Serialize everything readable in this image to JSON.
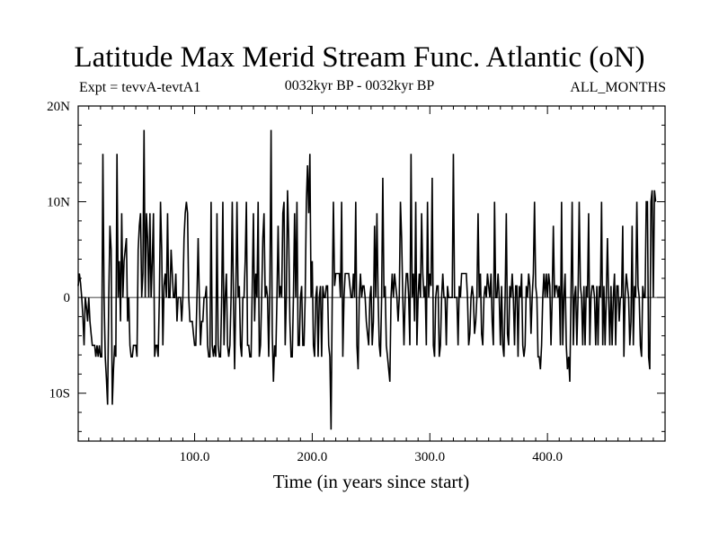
{
  "header": {
    "title": "Latitude Max Merid Stream Func. Atlantic (oN)",
    "experiment": "Expt = tevvA-tevtA1",
    "period": "0032kyr BP - 0032kyr BP",
    "season": "ALL_MONTHS"
  },
  "chart_data": {
    "type": "line",
    "title": "Latitude Max Merid Stream Func. Atlantic (oN)",
    "xlabel": "Time (in years since start)",
    "ylabel": "",
    "xlim": [
      1,
      500
    ],
    "ylim": [
      -15,
      20
    ],
    "x_ticks": [
      100,
      200,
      300,
      400
    ],
    "x_tick_labels": [
      "100.0",
      "200.0",
      "300.0",
      "400.0"
    ],
    "y_ticks": [
      20,
      10,
      0,
      -10
    ],
    "y_tick_labels": [
      "20N",
      "10N",
      "0",
      "10S"
    ],
    "zero_line": 0,
    "line_color": "#000000",
    "series": [
      {
        "x_start": 1,
        "x_step": 1,
        "values": [
          1.2,
          2.5,
          1.5,
          0.0,
          -2.0,
          -5.0,
          0.0,
          -1.0,
          -2.5,
          0.0,
          -2.5,
          -3.8,
          -5.0,
          -5.0,
          -5.0,
          -6.2,
          -5.0,
          -6.2,
          -5.0,
          -6.2,
          -6.2,
          15.0,
          0.0,
          -6.2,
          -8.5,
          -11.2,
          0.0,
          7.5,
          5.0,
          -11.2,
          -7.5,
          -5.0,
          -6.2,
          15.0,
          0.0,
          3.8,
          -2.5,
          8.8,
          0.0,
          3.8,
          5.0,
          6.2,
          -2.5,
          0.0,
          -5.0,
          -6.2,
          -6.2,
          -5.0,
          -5.0,
          -5.0,
          -6.2,
          5.0,
          7.5,
          8.8,
          0.0,
          2.5,
          17.5,
          0.0,
          8.8,
          6.2,
          0.0,
          8.8,
          0.0,
          3.8,
          8.8,
          -6.2,
          -5.0,
          -5.0,
          -6.2,
          0.0,
          10.0,
          5.0,
          -5.0,
          1.2,
          2.5,
          0.0,
          8.8,
          0.0,
          0.0,
          5.0,
          2.5,
          0.0,
          0.0,
          2.5,
          -2.5,
          0.0,
          0.0,
          0.0,
          -2.5,
          0.0,
          6.2,
          8.8,
          10.0,
          8.8,
          0.0,
          -2.5,
          -2.5,
          -2.5,
          -3.8,
          -5.0,
          -5.0,
          0.0,
          6.2,
          0.0,
          -5.0,
          -2.5,
          -2.5,
          0.0,
          0.0,
          1.2,
          -5.0,
          -6.2,
          -6.2,
          10.0,
          -5.0,
          -6.2,
          -5.0,
          -6.2,
          8.8,
          -5.0,
          -6.2,
          -6.2,
          0.0,
          10.0,
          -5.0,
          0.0,
          2.5,
          -5.0,
          -6.2,
          -5.0,
          0.0,
          10.0,
          0.0,
          -7.5,
          0.0,
          10.0,
          0.0,
          1.2,
          -5.0,
          -6.2,
          0.0,
          0.0,
          3.8,
          10.0,
          -5.0,
          -5.0,
          -6.2,
          -6.2,
          1.2,
          8.8,
          -2.5,
          2.5,
          0.0,
          10.0,
          -6.2,
          -5.0,
          0.0,
          6.2,
          8.8,
          0.0,
          1.2,
          0.0,
          -6.2,
          1.2,
          17.5,
          -3.8,
          -8.8,
          -5.0,
          -6.2,
          0.0,
          7.5,
          0.0,
          1.2,
          0.0,
          8.8,
          10.0,
          -5.0,
          0.0,
          11.2,
          6.2,
          -2.5,
          -6.2,
          -6.2,
          0.0,
          8.8,
          0.0,
          10.0,
          -5.0,
          -5.0,
          0.0,
          1.2,
          -5.0,
          -5.0,
          0.0,
          10.0,
          13.8,
          8.8,
          15.0,
          0.0,
          3.8,
          -5.0,
          -6.2,
          0.0,
          1.2,
          -6.2,
          0.0,
          1.2,
          -6.2,
          1.2,
          0.0,
          0.0,
          1.2,
          1.2,
          -5.0,
          -6.2,
          -13.8,
          0.0,
          10.0,
          1.2,
          2.5,
          2.5,
          2.5,
          2.5,
          0.0,
          10.0,
          -6.2,
          0.0,
          2.5,
          2.5,
          2.5,
          2.5,
          1.2,
          0.0,
          0.0,
          2.5,
          0.0,
          10.0,
          -5.0,
          -7.5,
          0.0,
          2.5,
          0.0,
          1.2,
          1.2,
          0.0,
          -2.5,
          -3.8,
          -5.0,
          0.0,
          1.2,
          -5.0,
          -2.5,
          7.5,
          0.0,
          8.8,
          0.0,
          -5.0,
          -6.2,
          0.0,
          12.5,
          0.0,
          1.2,
          -5.0,
          -6.2,
          -7.5,
          -8.8,
          0.0,
          2.5,
          0.0,
          2.5,
          1.2,
          0.0,
          -2.5,
          0.0,
          10.0,
          6.2,
          0.0,
          -5.0,
          0.0,
          2.5,
          2.5,
          0.0,
          -5.0,
          15.0,
          0.0,
          2.5,
          -2.5,
          10.0,
          -5.0,
          0.0,
          2.5,
          0.0,
          8.8,
          2.5,
          0.0,
          1.2,
          -5.0,
          10.0,
          0.0,
          2.5,
          1.2,
          12.5,
          -5.0,
          -6.2,
          0.0,
          1.2,
          1.2,
          -6.2,
          -5.0,
          0.0,
          2.5,
          0.0,
          0.0,
          -5.0,
          1.2,
          0.0,
          0.0,
          0.0,
          0.0,
          15.0,
          0.0,
          0.0,
          0.0,
          -5.0,
          1.2,
          0.0,
          2.5,
          2.5,
          2.5,
          2.5,
          2.5,
          0.0,
          -5.0,
          -3.8,
          0.0,
          1.2,
          0.0,
          -3.8,
          -2.5,
          0.0,
          8.8,
          0.0,
          2.5,
          -3.8,
          -5.0,
          0.0,
          1.2,
          0.0,
          2.5,
          1.2,
          0.0,
          2.5,
          -2.5,
          -5.0,
          10.0,
          0.0,
          0.0,
          2.5,
          0.0,
          -5.0,
          1.2,
          -5.0,
          -6.2,
          0.0,
          8.8,
          -3.8,
          -5.0,
          1.2,
          0.0,
          2.5,
          0.0,
          -5.0,
          1.2,
          1.2,
          -6.2,
          1.2,
          0.0,
          2.5,
          -5.0,
          -6.2,
          -5.0,
          1.2,
          0.0,
          2.5,
          1.2,
          -3.8,
          0.0,
          2.5,
          10.0,
          1.2,
          0.0,
          -6.2,
          -6.2,
          -7.5,
          -5.0,
          0.0,
          2.5,
          0.0,
          2.5,
          0.0,
          2.5,
          1.2,
          -5.0,
          0.0,
          7.5,
          0.0,
          1.2,
          1.2,
          0.0,
          1.2,
          -5.0,
          10.0,
          -5.0,
          0.0,
          2.5,
          -5.0,
          -7.5,
          -6.2,
          -8.8,
          0.0,
          10.0,
          -5.0,
          0.0,
          1.2,
          -5.0,
          0.0,
          10.0,
          1.2,
          0.0,
          -5.0,
          1.2,
          -5.0,
          1.2,
          0.0,
          8.8,
          -5.0,
          0.0,
          1.2,
          1.2,
          0.0,
          -5.0,
          1.2,
          -5.0,
          1.2,
          0.0,
          10.0,
          -5.0,
          1.2,
          -5.0,
          0.0,
          6.2,
          0.0,
          -5.0,
          1.2,
          -5.0,
          0.0,
          2.5,
          -5.0,
          1.2,
          1.2,
          -2.5,
          0.0,
          0.0,
          7.5,
          -6.2,
          0.0,
          2.5,
          1.2,
          0.0,
          -5.0,
          -2.5,
          7.5,
          -5.0,
          1.2,
          0.0,
          10.0,
          1.2,
          0.0,
          -5.0,
          -6.2,
          1.2,
          0.0,
          0.0,
          10.0,
          10.0,
          -6.2,
          -7.5,
          10.0,
          11.2,
          0.0,
          11.2,
          10.0
        ]
      }
    ]
  }
}
